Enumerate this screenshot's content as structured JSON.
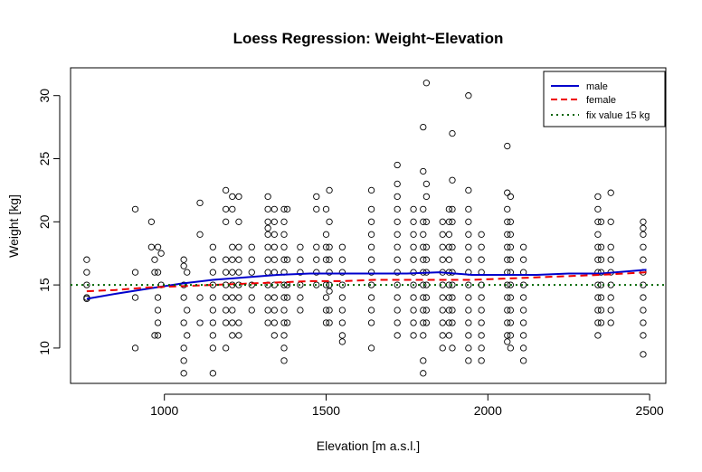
{
  "chart_data": {
    "type": "scatter",
    "title": "Loess Regression: Weight~Elevation",
    "xlabel": "Elevation [m a.s.l.]",
    "ylabel": "Weight [kg]",
    "xlim": [
      710,
      2550
    ],
    "ylim": [
      7.2,
      32.2
    ],
    "xticks": [
      1000,
      1500,
      2000,
      2500
    ],
    "yticks": [
      10,
      15,
      20,
      25,
      30
    ],
    "xtick_labels": [
      "1000",
      "1500",
      "2000",
      "2500"
    ],
    "ytick_labels": [
      "10",
      "15",
      "20",
      "25",
      "30"
    ],
    "grid": false,
    "legend_position": "top-right",
    "legend": [
      {
        "label": "male",
        "color": "#0000cc",
        "style": "solid"
      },
      {
        "label": "female",
        "color": "#ee0000",
        "style": "dashed"
      },
      {
        "label": "fix value 15 kg",
        "color": "#006400",
        "style": "dotted"
      }
    ],
    "lines": [
      {
        "name": "male",
        "color": "#0000cc",
        "style": "solid",
        "x": [
          760,
          850,
          950,
          1050,
          1150,
          1250,
          1350,
          1450,
          1550,
          1650,
          1750,
          1850,
          1950,
          2050,
          2150,
          2250,
          2350,
          2490
        ],
        "y": [
          13.9,
          14.3,
          14.7,
          15.1,
          15.4,
          15.6,
          15.8,
          15.9,
          15.9,
          15.9,
          15.9,
          16.0,
          15.8,
          15.8,
          15.8,
          15.9,
          15.9,
          16.2
        ]
      },
      {
        "name": "female",
        "color": "#ee0000",
        "style": "dashed",
        "x": [
          760,
          850,
          950,
          1050,
          1150,
          1250,
          1350,
          1450,
          1550,
          1650,
          1750,
          1850,
          1950,
          2050,
          2150,
          2250,
          2350,
          2490
        ],
        "y": [
          14.5,
          14.6,
          14.8,
          14.9,
          15.0,
          15.1,
          15.2,
          15.3,
          15.3,
          15.4,
          15.4,
          15.4,
          15.4,
          15.5,
          15.6,
          15.7,
          15.8,
          16.0
        ]
      },
      {
        "name": "fix value 15 kg",
        "color": "#006400",
        "style": "dotted",
        "x": [
          710,
          2550
        ],
        "y": [
          15,
          15
        ]
      }
    ],
    "points": [
      [
        760,
        14
      ],
      [
        760,
        15
      ],
      [
        760,
        16
      ],
      [
        760,
        17
      ],
      [
        760,
        13.9
      ],
      [
        910,
        21
      ],
      [
        910,
        16
      ],
      [
        910,
        10
      ],
      [
        910,
        14
      ],
      [
        960,
        20
      ],
      [
        960,
        18
      ],
      [
        970,
        17
      ],
      [
        970,
        16
      ],
      [
        970,
        11
      ],
      [
        980,
        18
      ],
      [
        980,
        16
      ],
      [
        980,
        14
      ],
      [
        980,
        13
      ],
      [
        980,
        12
      ],
      [
        980,
        11
      ],
      [
        990,
        17.5
      ],
      [
        990,
        15
      ],
      [
        1060,
        17
      ],
      [
        1060,
        16.5
      ],
      [
        1060,
        15
      ],
      [
        1060,
        14
      ],
      [
        1060,
        12
      ],
      [
        1060,
        10
      ],
      [
        1060,
        9
      ],
      [
        1060,
        8
      ],
      [
        1070,
        16
      ],
      [
        1070,
        13
      ],
      [
        1070,
        11
      ],
      [
        1110,
        21.5
      ],
      [
        1110,
        19
      ],
      [
        1110,
        14
      ],
      [
        1110,
        12
      ],
      [
        1150,
        15
      ],
      [
        1150,
        8
      ],
      [
        1150,
        10
      ],
      [
        1150,
        11
      ],
      [
        1150,
        12
      ],
      [
        1150,
        13
      ],
      [
        1150,
        14
      ],
      [
        1150,
        16
      ],
      [
        1150,
        17
      ],
      [
        1150,
        18
      ],
      [
        1190,
        22.5
      ],
      [
        1190,
        21
      ],
      [
        1190,
        20
      ],
      [
        1190,
        17
      ],
      [
        1190,
        16
      ],
      [
        1190,
        15
      ],
      [
        1190,
        14
      ],
      [
        1190,
        13
      ],
      [
        1190,
        12
      ],
      [
        1190,
        10
      ],
      [
        1210,
        22
      ],
      [
        1210,
        21
      ],
      [
        1210,
        18
      ],
      [
        1210,
        17
      ],
      [
        1210,
        16
      ],
      [
        1210,
        15
      ],
      [
        1210,
        14
      ],
      [
        1210,
        13
      ],
      [
        1210,
        12
      ],
      [
        1210,
        11
      ],
      [
        1230,
        22
      ],
      [
        1230,
        20
      ],
      [
        1230,
        18
      ],
      [
        1230,
        17
      ],
      [
        1230,
        16
      ],
      [
        1230,
        15
      ],
      [
        1230,
        14
      ],
      [
        1230,
        12
      ],
      [
        1230,
        11
      ],
      [
        1270,
        18
      ],
      [
        1270,
        17
      ],
      [
        1270,
        16
      ],
      [
        1270,
        15
      ],
      [
        1270,
        14
      ],
      [
        1270,
        13
      ],
      [
        1320,
        22
      ],
      [
        1320,
        21
      ],
      [
        1320,
        20
      ],
      [
        1320,
        19.5
      ],
      [
        1320,
        19
      ],
      [
        1320,
        18
      ],
      [
        1320,
        17
      ],
      [
        1320,
        16
      ],
      [
        1320,
        15
      ],
      [
        1320,
        14
      ],
      [
        1320,
        13
      ],
      [
        1320,
        12
      ],
      [
        1340,
        21
      ],
      [
        1340,
        20
      ],
      [
        1340,
        19
      ],
      [
        1340,
        18
      ],
      [
        1340,
        17
      ],
      [
        1340,
        16
      ],
      [
        1340,
        15
      ],
      [
        1340,
        14
      ],
      [
        1340,
        13
      ],
      [
        1340,
        12
      ],
      [
        1340,
        11
      ],
      [
        1370,
        21
      ],
      [
        1370,
        20
      ],
      [
        1370,
        19
      ],
      [
        1370,
        18
      ],
      [
        1370,
        17
      ],
      [
        1370,
        16
      ],
      [
        1370,
        15
      ],
      [
        1370,
        14
      ],
      [
        1370,
        13
      ],
      [
        1370,
        12
      ],
      [
        1370,
        11
      ],
      [
        1370,
        10
      ],
      [
        1370,
        9
      ],
      [
        1380,
        21
      ],
      [
        1380,
        17
      ],
      [
        1380,
        15
      ],
      [
        1380,
        14
      ],
      [
        1380,
        12
      ],
      [
        1420,
        18
      ],
      [
        1420,
        17
      ],
      [
        1420,
        16
      ],
      [
        1420,
        15
      ],
      [
        1420,
        14
      ],
      [
        1420,
        13
      ],
      [
        1470,
        22
      ],
      [
        1470,
        21
      ],
      [
        1470,
        18
      ],
      [
        1470,
        17
      ],
      [
        1470,
        16
      ],
      [
        1470,
        15
      ],
      [
        1500,
        21
      ],
      [
        1500,
        19
      ],
      [
        1500,
        18
      ],
      [
        1500,
        17
      ],
      [
        1500,
        15
      ],
      [
        1500,
        14
      ],
      [
        1500,
        13
      ],
      [
        1500,
        12
      ],
      [
        1510,
        22.5
      ],
      [
        1510,
        20
      ],
      [
        1510,
        18
      ],
      [
        1510,
        17
      ],
      [
        1510,
        16
      ],
      [
        1510,
        15
      ],
      [
        1510,
        14.5
      ],
      [
        1510,
        13
      ],
      [
        1510,
        12
      ],
      [
        1550,
        18
      ],
      [
        1550,
        17
      ],
      [
        1550,
        16
      ],
      [
        1550,
        15
      ],
      [
        1550,
        14
      ],
      [
        1550,
        13
      ],
      [
        1550,
        12
      ],
      [
        1550,
        11
      ],
      [
        1550,
        10.5
      ],
      [
        1640,
        22.5
      ],
      [
        1640,
        21
      ],
      [
        1640,
        20
      ],
      [
        1640,
        19
      ],
      [
        1640,
        18
      ],
      [
        1640,
        17
      ],
      [
        1640,
        16
      ],
      [
        1640,
        15
      ],
      [
        1640,
        14
      ],
      [
        1640,
        13
      ],
      [
        1640,
        12
      ],
      [
        1640,
        10
      ],
      [
        1720,
        24.5
      ],
      [
        1720,
        23
      ],
      [
        1720,
        22
      ],
      [
        1720,
        21
      ],
      [
        1720,
        20
      ],
      [
        1720,
        19
      ],
      [
        1720,
        18
      ],
      [
        1720,
        17
      ],
      [
        1720,
        16
      ],
      [
        1720,
        15
      ],
      [
        1720,
        14
      ],
      [
        1720,
        13
      ],
      [
        1720,
        12
      ],
      [
        1720,
        11
      ],
      [
        1770,
        21
      ],
      [
        1770,
        20
      ],
      [
        1770,
        19
      ],
      [
        1770,
        18
      ],
      [
        1770,
        17
      ],
      [
        1770,
        16
      ],
      [
        1770,
        15
      ],
      [
        1770,
        14
      ],
      [
        1770,
        13
      ],
      [
        1770,
        12
      ],
      [
        1770,
        11
      ],
      [
        1800,
        27.5
      ],
      [
        1800,
        24
      ],
      [
        1800,
        21
      ],
      [
        1800,
        20
      ],
      [
        1800,
        19
      ],
      [
        1800,
        18
      ],
      [
        1800,
        17
      ],
      [
        1800,
        16
      ],
      [
        1800,
        15
      ],
      [
        1800,
        14
      ],
      [
        1800,
        13
      ],
      [
        1800,
        12
      ],
      [
        1800,
        11
      ],
      [
        1800,
        9
      ],
      [
        1800,
        8
      ],
      [
        1810,
        31
      ],
      [
        1810,
        23
      ],
      [
        1810,
        22
      ],
      [
        1810,
        20
      ],
      [
        1810,
        18
      ],
      [
        1810,
        17
      ],
      [
        1810,
        16
      ],
      [
        1810,
        15
      ],
      [
        1810,
        14
      ],
      [
        1810,
        13
      ],
      [
        1810,
        12
      ],
      [
        1860,
        20
      ],
      [
        1860,
        19
      ],
      [
        1860,
        18
      ],
      [
        1860,
        17
      ],
      [
        1860,
        16
      ],
      [
        1860,
        15
      ],
      [
        1860,
        14
      ],
      [
        1860,
        13
      ],
      [
        1860,
        12
      ],
      [
        1860,
        11
      ],
      [
        1860,
        10
      ],
      [
        1880,
        21
      ],
      [
        1880,
        20
      ],
      [
        1880,
        19
      ],
      [
        1880,
        18
      ],
      [
        1880,
        17
      ],
      [
        1880,
        16
      ],
      [
        1880,
        15
      ],
      [
        1880,
        14
      ],
      [
        1880,
        13
      ],
      [
        1880,
        12
      ],
      [
        1880,
        11
      ],
      [
        1890,
        27
      ],
      [
        1890,
        23.3
      ],
      [
        1890,
        21
      ],
      [
        1890,
        20
      ],
      [
        1890,
        18
      ],
      [
        1890,
        16
      ],
      [
        1890,
        15
      ],
      [
        1890,
        14
      ],
      [
        1890,
        13
      ],
      [
        1890,
        12
      ],
      [
        1890,
        10
      ],
      [
        1940,
        30
      ],
      [
        1940,
        22.5
      ],
      [
        1940,
        21
      ],
      [
        1940,
        20
      ],
      [
        1940,
        19
      ],
      [
        1940,
        18
      ],
      [
        1940,
        17
      ],
      [
        1940,
        16
      ],
      [
        1940,
        15
      ],
      [
        1940,
        14
      ],
      [
        1940,
        13
      ],
      [
        1940,
        12
      ],
      [
        1940,
        11
      ],
      [
        1940,
        10
      ],
      [
        1940,
        9
      ],
      [
        1980,
        19
      ],
      [
        1980,
        18
      ],
      [
        1980,
        17
      ],
      [
        1980,
        16
      ],
      [
        1980,
        15
      ],
      [
        1980,
        14
      ],
      [
        1980,
        13
      ],
      [
        1980,
        12
      ],
      [
        1980,
        11
      ],
      [
        1980,
        10
      ],
      [
        1980,
        9
      ],
      [
        2060,
        26
      ],
      [
        2060,
        22.3
      ],
      [
        2060,
        21
      ],
      [
        2060,
        20
      ],
      [
        2060,
        19
      ],
      [
        2060,
        18
      ],
      [
        2060,
        17
      ],
      [
        2060,
        16
      ],
      [
        2060,
        15
      ],
      [
        2060,
        14
      ],
      [
        2060,
        13
      ],
      [
        2060,
        12
      ],
      [
        2060,
        11
      ],
      [
        2060,
        10.5
      ],
      [
        2070,
        22
      ],
      [
        2070,
        20
      ],
      [
        2070,
        19
      ],
      [
        2070,
        18
      ],
      [
        2070,
        17
      ],
      [
        2070,
        16
      ],
      [
        2070,
        15
      ],
      [
        2070,
        14
      ],
      [
        2070,
        13
      ],
      [
        2070,
        12
      ],
      [
        2070,
        11
      ],
      [
        2070,
        10
      ],
      [
        2110,
        18
      ],
      [
        2110,
        17
      ],
      [
        2110,
        16
      ],
      [
        2110,
        15
      ],
      [
        2110,
        14
      ],
      [
        2110,
        13
      ],
      [
        2110,
        12
      ],
      [
        2110,
        11
      ],
      [
        2110,
        10
      ],
      [
        2110,
        9
      ],
      [
        2340,
        22
      ],
      [
        2340,
        21
      ],
      [
        2340,
        20
      ],
      [
        2340,
        19
      ],
      [
        2340,
        18
      ],
      [
        2340,
        17
      ],
      [
        2340,
        16
      ],
      [
        2340,
        15
      ],
      [
        2340,
        14
      ],
      [
        2340,
        13
      ],
      [
        2340,
        12
      ],
      [
        2340,
        11
      ],
      [
        2350,
        20
      ],
      [
        2350,
        18
      ],
      [
        2350,
        17
      ],
      [
        2350,
        16
      ],
      [
        2350,
        15
      ],
      [
        2350,
        14
      ],
      [
        2350,
        13
      ],
      [
        2350,
        12
      ],
      [
        2380,
        22.3
      ],
      [
        2380,
        20
      ],
      [
        2380,
        18
      ],
      [
        2380,
        17
      ],
      [
        2380,
        16
      ],
      [
        2380,
        15
      ],
      [
        2380,
        14
      ],
      [
        2380,
        13
      ],
      [
        2380,
        12
      ],
      [
        2480,
        20
      ],
      [
        2480,
        19.5
      ],
      [
        2480,
        19
      ],
      [
        2480,
        18
      ],
      [
        2480,
        17
      ],
      [
        2480,
        16
      ],
      [
        2480,
        15
      ],
      [
        2480,
        14
      ],
      [
        2480,
        13
      ],
      [
        2480,
        12
      ],
      [
        2480,
        11
      ],
      [
        2480,
        9.5
      ]
    ]
  }
}
